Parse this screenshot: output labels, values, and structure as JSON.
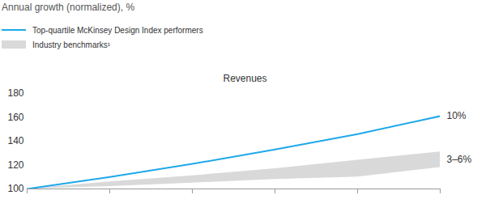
{
  "chart_data": {
    "type": "line",
    "title": "Revenues",
    "ylabel": "Annual growth (normalized), %",
    "categories": [
      null,
      null,
      null,
      null,
      null,
      null
    ],
    "series": [
      {
        "name": "Top-quartile McKinsey Design Index performers",
        "color": "#1fa8ea",
        "values": [
          100,
          110,
          121,
          133,
          146,
          161
        ]
      },
      {
        "name": "Industry benchmarks¹",
        "type": "area",
        "color": "#d9d9d9",
        "low": [
          100,
          102,
          105,
          108,
          110,
          118
        ],
        "high": [
          100,
          106,
          111,
          117,
          124,
          131
        ]
      }
    ],
    "annotations": [
      {
        "text": "10%",
        "series": "Top-quartile McKinsey Design Index performers"
      },
      {
        "text": "3–6%",
        "series": "Industry benchmarks¹"
      }
    ],
    "ylim": [
      100,
      180
    ],
    "yticks": [
      100,
      120,
      140,
      160,
      180
    ],
    "grid": false,
    "legend": "top-left",
    "tick_labels": "y"
  }
}
